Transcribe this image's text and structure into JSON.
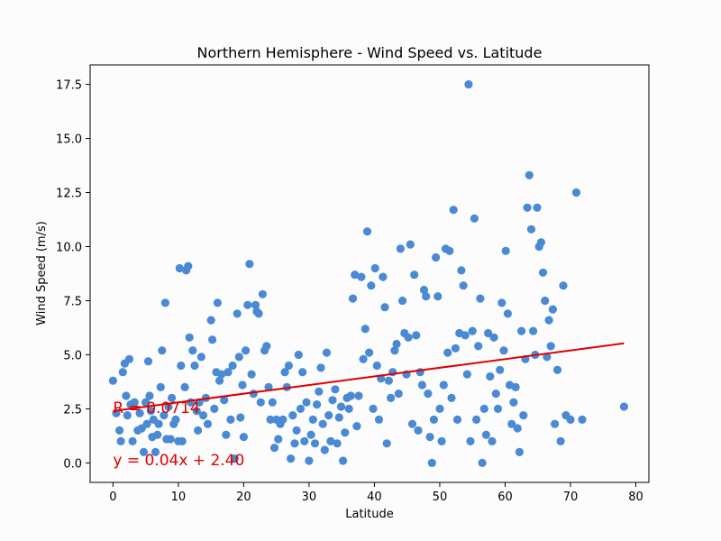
{
  "chart_data": {
    "type": "scatter",
    "title": "Northern Hemisphere - Wind Speed vs. Latitude",
    "xlabel": "Latitude",
    "ylabel": "Wind Speed (m/s)",
    "xlim": [
      -3.5,
      82
    ],
    "ylim": [
      -0.9,
      18.4
    ],
    "xticks": [
      0,
      10,
      20,
      30,
      40,
      50,
      60,
      70,
      80
    ],
    "yticks": [
      "0.0",
      "2.5",
      "5.0",
      "7.5",
      "10.0",
      "12.5",
      "15.0",
      "17.5"
    ],
    "grid": false,
    "point_color": "#4a8ad4",
    "line_color": "#e00000",
    "regression": {
      "slope": 0.04,
      "intercept": 2.4,
      "x_range": [
        0,
        78.2
      ]
    },
    "annotations": [
      {
        "text": "R = 0.0714",
        "x": 0,
        "y": 2.3
      },
      {
        "text": "y =  0.04x +  2.40",
        "x": 0,
        "y": -0.1
      }
    ],
    "points": [
      [
        0.0,
        3.8
      ],
      [
        0.5,
        2.3
      ],
      [
        1.0,
        1.5
      ],
      [
        1.2,
        1.0
      ],
      [
        1.5,
        4.2
      ],
      [
        1.8,
        4.6
      ],
      [
        2.0,
        3.1
      ],
      [
        2.2,
        2.2
      ],
      [
        2.5,
        4.8
      ],
      [
        2.7,
        2.7
      ],
      [
        3.0,
        1.0
      ],
      [
        3.3,
        2.8
      ],
      [
        3.8,
        1.5
      ],
      [
        4.1,
        2.3
      ],
      [
        4.4,
        1.6
      ],
      [
        4.7,
        0.5
      ],
      [
        5.0,
        2.8
      ],
      [
        5.2,
        1.8
      ],
      [
        5.4,
        4.7
      ],
      [
        5.6,
        3.1
      ],
      [
        5.8,
        2.4
      ],
      [
        6.0,
        1.2
      ],
      [
        6.2,
        2.0
      ],
      [
        6.5,
        0.5
      ],
      [
        6.8,
        1.3
      ],
      [
        7.0,
        1.8
      ],
      [
        7.3,
        3.5
      ],
      [
        7.5,
        5.2
      ],
      [
        7.8,
        2.2
      ],
      [
        8.0,
        7.4
      ],
      [
        8.2,
        1.1
      ],
      [
        8.5,
        2.6
      ],
      [
        8.8,
        1.1
      ],
      [
        9.0,
        3.0
      ],
      [
        9.3,
        1.8
      ],
      [
        9.6,
        2.0
      ],
      [
        10.0,
        1.0
      ],
      [
        10.2,
        9.0
      ],
      [
        10.4,
        4.5
      ],
      [
        10.6,
        1.0
      ],
      [
        11.0,
        3.5
      ],
      [
        11.2,
        8.9
      ],
      [
        11.5,
        9.1
      ],
      [
        11.7,
        5.8
      ],
      [
        11.9,
        2.8
      ],
      [
        12.2,
        5.2
      ],
      [
        12.5,
        4.5
      ],
      [
        12.8,
        2.4
      ],
      [
        13.0,
        1.5
      ],
      [
        13.2,
        2.8
      ],
      [
        13.5,
        4.9
      ],
      [
        13.8,
        2.2
      ],
      [
        14.2,
        3.0
      ],
      [
        14.5,
        1.8
      ],
      [
        15.0,
        6.6
      ],
      [
        15.2,
        5.7
      ],
      [
        15.5,
        2.5
      ],
      [
        15.8,
        4.2
      ],
      [
        16.0,
        7.4
      ],
      [
        16.3,
        3.8
      ],
      [
        16.6,
        4.1
      ],
      [
        17.0,
        2.9
      ],
      [
        17.3,
        1.3
      ],
      [
        17.6,
        4.2
      ],
      [
        18.0,
        2.0
      ],
      [
        18.3,
        4.5
      ],
      [
        18.6,
        0.2
      ],
      [
        19.0,
        6.9
      ],
      [
        19.3,
        4.9
      ],
      [
        19.5,
        2.1
      ],
      [
        19.8,
        3.6
      ],
      [
        20.0,
        1.2
      ],
      [
        20.3,
        5.2
      ],
      [
        20.6,
        7.3
      ],
      [
        20.9,
        9.2
      ],
      [
        21.2,
        4.1
      ],
      [
        21.5,
        3.2
      ],
      [
        21.8,
        7.3
      ],
      [
        22.0,
        7.0
      ],
      [
        22.3,
        6.9
      ],
      [
        22.6,
        2.8
      ],
      [
        22.9,
        7.8
      ],
      [
        23.2,
        5.2
      ],
      [
        23.5,
        5.4
      ],
      [
        23.8,
        3.5
      ],
      [
        24.1,
        2.0
      ],
      [
        24.4,
        2.8
      ],
      [
        24.7,
        0.7
      ],
      [
        25.0,
        2.0
      ],
      [
        25.3,
        1.1
      ],
      [
        25.6,
        1.8
      ],
      [
        26.0,
        2.0
      ],
      [
        26.3,
        4.2
      ],
      [
        26.6,
        3.5
      ],
      [
        26.9,
        4.5
      ],
      [
        27.2,
        0.2
      ],
      [
        27.5,
        2.2
      ],
      [
        27.8,
        0.9
      ],
      [
        28.1,
        1.5
      ],
      [
        28.4,
        5.0
      ],
      [
        28.7,
        2.5
      ],
      [
        29.0,
        4.2
      ],
      [
        29.3,
        1.0
      ],
      [
        29.6,
        2.8
      ],
      [
        30.0,
        0.1
      ],
      [
        30.3,
        1.3
      ],
      [
        30.6,
        2.0
      ],
      [
        30.9,
        0.9
      ],
      [
        31.2,
        2.7
      ],
      [
        31.5,
        3.3
      ],
      [
        31.8,
        4.4
      ],
      [
        32.1,
        1.8
      ],
      [
        32.4,
        0.6
      ],
      [
        32.7,
        5.1
      ],
      [
        33.0,
        2.2
      ],
      [
        33.3,
        1.0
      ],
      [
        33.6,
        2.9
      ],
      [
        34.0,
        3.4
      ],
      [
        34.3,
        0.9
      ],
      [
        34.6,
        2.1
      ],
      [
        34.9,
        2.6
      ],
      [
        35.2,
        0.1
      ],
      [
        35.5,
        1.4
      ],
      [
        35.8,
        3.0
      ],
      [
        36.1,
        2.5
      ],
      [
        36.4,
        3.1
      ],
      [
        36.7,
        7.6
      ],
      [
        37.0,
        8.7
      ],
      [
        37.3,
        1.7
      ],
      [
        37.6,
        3.1
      ],
      [
        38.0,
        8.6
      ],
      [
        38.3,
        4.8
      ],
      [
        38.6,
        6.2
      ],
      [
        38.9,
        10.7
      ],
      [
        39.2,
        5.1
      ],
      [
        39.5,
        8.2
      ],
      [
        39.8,
        2.5
      ],
      [
        40.1,
        9.0
      ],
      [
        40.4,
        4.5
      ],
      [
        40.7,
        2.0
      ],
      [
        41.0,
        3.9
      ],
      [
        41.3,
        8.6
      ],
      [
        41.6,
        7.2
      ],
      [
        41.9,
        0.9
      ],
      [
        42.2,
        3.8
      ],
      [
        42.5,
        3.0
      ],
      [
        42.8,
        4.2
      ],
      [
        43.1,
        5.2
      ],
      [
        43.4,
        5.5
      ],
      [
        43.7,
        3.2
      ],
      [
        44.0,
        9.9
      ],
      [
        44.3,
        7.5
      ],
      [
        44.6,
        6.0
      ],
      [
        44.9,
        4.1
      ],
      [
        45.2,
        5.8
      ],
      [
        45.5,
        10.1
      ],
      [
        45.8,
        1.8
      ],
      [
        46.1,
        8.7
      ],
      [
        46.4,
        5.9
      ],
      [
        46.7,
        1.5
      ],
      [
        47.0,
        4.2
      ],
      [
        47.3,
        3.6
      ],
      [
        47.6,
        8.0
      ],
      [
        47.9,
        7.7
      ],
      [
        48.2,
        3.2
      ],
      [
        48.5,
        1.2
      ],
      [
        48.8,
        0.0
      ],
      [
        49.1,
        2.0
      ],
      [
        49.4,
        9.5
      ],
      [
        49.7,
        7.7
      ],
      [
        50.0,
        2.5
      ],
      [
        50.3,
        1.0
      ],
      [
        50.6,
        3.6
      ],
      [
        50.9,
        9.9
      ],
      [
        51.2,
        5.1
      ],
      [
        51.5,
        9.8
      ],
      [
        51.8,
        3.0
      ],
      [
        52.1,
        11.7
      ],
      [
        52.4,
        5.3
      ],
      [
        52.7,
        2.0
      ],
      [
        53.0,
        6.0
      ],
      [
        53.3,
        8.9
      ],
      [
        53.6,
        8.2
      ],
      [
        53.9,
        5.9
      ],
      [
        54.2,
        4.1
      ],
      [
        54.4,
        17.5
      ],
      [
        54.7,
        1.0
      ],
      [
        55.0,
        6.1
      ],
      [
        55.3,
        11.3
      ],
      [
        55.6,
        2.0
      ],
      [
        55.9,
        5.4
      ],
      [
        56.2,
        7.6
      ],
      [
        56.5,
        0.0
      ],
      [
        56.8,
        2.5
      ],
      [
        57.1,
        1.3
      ],
      [
        57.4,
        6.0
      ],
      [
        57.7,
        4.0
      ],
      [
        58.0,
        1.0
      ],
      [
        58.3,
        5.8
      ],
      [
        58.6,
        3.2
      ],
      [
        58.9,
        2.5
      ],
      [
        59.2,
        4.3
      ],
      [
        59.5,
        7.4
      ],
      [
        59.8,
        5.2
      ],
      [
        60.1,
        9.8
      ],
      [
        60.4,
        6.9
      ],
      [
        60.7,
        3.6
      ],
      [
        61.0,
        1.8
      ],
      [
        61.3,
        2.8
      ],
      [
        61.6,
        3.5
      ],
      [
        61.9,
        1.6
      ],
      [
        62.2,
        0.5
      ],
      [
        62.5,
        6.1
      ],
      [
        62.8,
        2.2
      ],
      [
        63.1,
        4.8
      ],
      [
        63.4,
        11.8
      ],
      [
        63.7,
        13.3
      ],
      [
        64.0,
        10.8
      ],
      [
        64.3,
        6.1
      ],
      [
        64.6,
        5.0
      ],
      [
        64.9,
        11.8
      ],
      [
        65.2,
        10.0
      ],
      [
        65.5,
        10.2
      ],
      [
        65.8,
        8.8
      ],
      [
        66.1,
        7.5
      ],
      [
        66.4,
        4.9
      ],
      [
        66.7,
        6.6
      ],
      [
        67.0,
        5.4
      ],
      [
        67.3,
        7.1
      ],
      [
        67.6,
        1.8
      ],
      [
        68.0,
        4.3
      ],
      [
        68.5,
        1.0
      ],
      [
        68.9,
        8.2
      ],
      [
        69.3,
        2.2
      ],
      [
        70.0,
        2.0
      ],
      [
        70.9,
        12.5
      ],
      [
        71.8,
        2.0
      ],
      [
        78.2,
        2.6
      ]
    ]
  }
}
